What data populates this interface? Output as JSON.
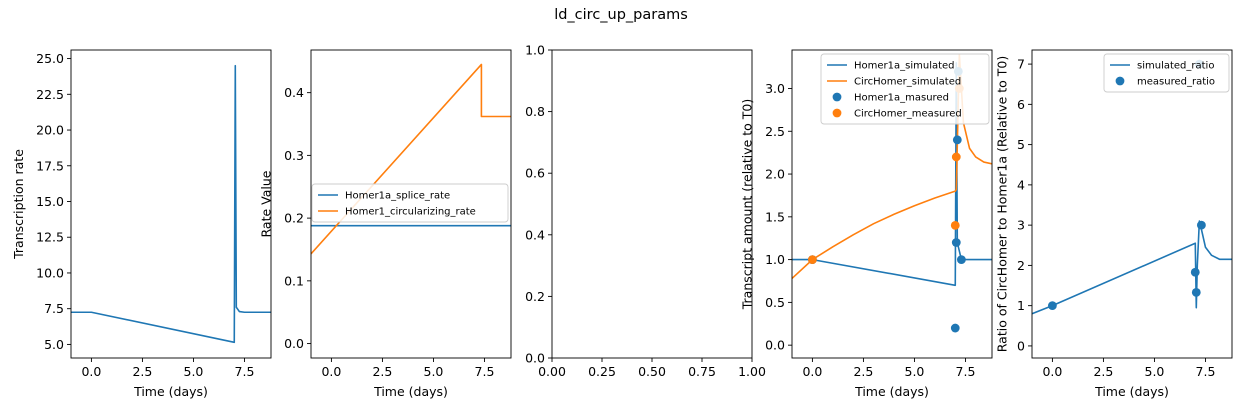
{
  "suptitle": "ld_circ_up_params",
  "colors": {
    "c0": "#1f77b4",
    "c1": "#ff7f0e"
  },
  "chart_data": [
    {
      "type": "line",
      "xlabel": "Time (days)",
      "ylabel": "Transcription rate",
      "xlim": [
        -1.0,
        8.8
      ],
      "ylim": [
        4.05,
        25.6
      ],
      "xticks": [
        "0.0",
        "2.5",
        "5.0",
        "7.5"
      ],
      "yticks": [
        "5.0",
        "7.5",
        "10.0",
        "12.5",
        "15.0",
        "17.5",
        "20.0",
        "22.5",
        "25.0"
      ],
      "series": [
        {
          "color": "#1f77b4",
          "x": [
            -1.0,
            0.0,
            7.0,
            7.0,
            7.05,
            7.1,
            7.25,
            7.5,
            8.8
          ],
          "y": [
            7.25,
            7.25,
            5.15,
            5.15,
            24.5,
            7.6,
            7.3,
            7.25,
            7.25
          ]
        }
      ]
    },
    {
      "type": "line",
      "xlabel": "Time (days)",
      "ylabel": "Rate Value",
      "xlim": [
        -1.0,
        8.8
      ],
      "ylim": [
        -0.023,
        0.468
      ],
      "xticks": [
        "0.0",
        "2.5",
        "5.0",
        "7.5"
      ],
      "yticks": [
        "0.0",
        "0.1",
        "0.2",
        "0.3",
        "0.4"
      ],
      "legend": "center-right",
      "series": [
        {
          "name": "Homer1a_splice_rate",
          "color": "#1f77b4",
          "x": [
            -1.0,
            8.8
          ],
          "y": [
            0.188,
            0.188
          ]
        },
        {
          "name": "Homer1_circularizing_rate",
          "color": "#ff7f0e",
          "x": [
            -1.0,
            7.35,
            7.35,
            8.8
          ],
          "y": [
            0.143,
            0.445,
            0.362,
            0.362
          ]
        }
      ]
    },
    {
      "type": "line",
      "xlim": [
        0.0,
        1.0
      ],
      "ylim": [
        0.0,
        1.0
      ],
      "xticks": [
        "0.00",
        "0.25",
        "0.50",
        "0.75",
        "1.00"
      ],
      "yticks": [
        "0.0",
        "0.2",
        "0.4",
        "0.6",
        "0.8",
        "1.0"
      ],
      "series": []
    },
    {
      "type": "line",
      "xlabel": "Time (days)",
      "ylabel": "Transcript amount (relative to T0)",
      "xlim": [
        -1.0,
        8.8
      ],
      "ylim": [
        -0.15,
        3.45
      ],
      "xticks": [
        "0.0",
        "2.5",
        "5.0",
        "7.5"
      ],
      "yticks": [
        "0.0",
        "0.5",
        "1.0",
        "1.5",
        "2.0",
        "2.5",
        "3.0"
      ],
      "legend": "top-right",
      "series": [
        {
          "name": "Homer1a_simulated",
          "color": "#1f77b4",
          "x": [
            -1.0,
            0.0,
            7.0,
            7.0,
            7.05,
            7.1,
            7.3,
            7.4,
            8.8
          ],
          "y": [
            1.0,
            1.0,
            0.7,
            0.7,
            3.3,
            1.2,
            1.0,
            1.0,
            1.0
          ]
        },
        {
          "name": "CircHomer_simulated",
          "color": "#ff7f0e",
          "x": [
            -1.0,
            0.0,
            1.0,
            2.0,
            3.0,
            4.0,
            5.0,
            6.0,
            7.0,
            7.05,
            7.2,
            7.4,
            7.7,
            8.0,
            8.4,
            8.8
          ],
          "y": [
            0.78,
            1.0,
            1.15,
            1.29,
            1.42,
            1.53,
            1.63,
            1.72,
            1.8,
            1.82,
            3.4,
            2.6,
            2.3,
            2.2,
            2.14,
            2.12
          ]
        },
        {
          "name": "Homer1a_masured",
          "color": "#1f77b4",
          "marker": "o",
          "x": [
            0.0,
            7.0,
            7.05,
            7.1,
            7.15,
            7.3
          ],
          "y": [
            1.0,
            0.2,
            1.2,
            2.4,
            3.2,
            1.0
          ]
        },
        {
          "name": "CircHomer_measured",
          "color": "#ff7f0e",
          "marker": "o",
          "x": [
            0.0,
            7.0,
            7.05,
            7.2
          ],
          "y": [
            1.0,
            1.4,
            2.2,
            3.0
          ]
        }
      ]
    },
    {
      "type": "line",
      "xlabel": "Time (days)",
      "ylabel": "Ratio of CircHomer to Homer1a (Relative to T0)",
      "xlim": [
        -1.0,
        8.8
      ],
      "ylim": [
        -0.3,
        7.35
      ],
      "xticks": [
        "0.0",
        "2.5",
        "5.0",
        "7.5"
      ],
      "yticks": [
        "0",
        "1",
        "2",
        "3",
        "4",
        "5",
        "6",
        "7"
      ],
      "legend": "top-right",
      "series": [
        {
          "name": "simulated_ratio",
          "color": "#1f77b4",
          "x": [
            -1.0,
            0.0,
            7.0,
            7.0,
            7.05,
            7.1,
            7.2,
            7.3,
            7.5,
            7.8,
            8.2,
            8.8
          ],
          "y": [
            0.8,
            1.0,
            2.55,
            2.55,
            0.95,
            2.0,
            3.1,
            2.9,
            2.45,
            2.25,
            2.15,
            2.15
          ]
        },
        {
          "name": "measured_ratio",
          "color": "#1f77b4",
          "marker": "o",
          "x": [
            0.0,
            7.0,
            7.05,
            7.2,
            7.3
          ],
          "y": [
            1.0,
            1.83,
            1.33,
            7.0,
            3.0
          ]
        }
      ]
    }
  ]
}
